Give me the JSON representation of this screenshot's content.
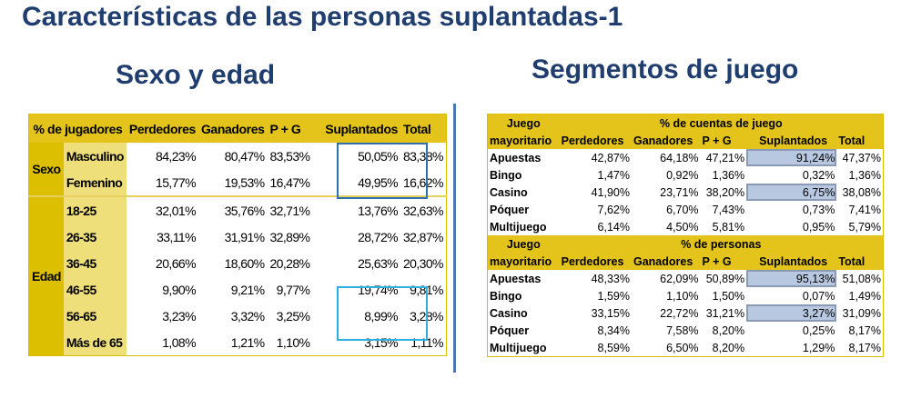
{
  "title": "Características de las personas suplantadas-1",
  "left": {
    "subtitle": "Sexo y edad",
    "corner": "% de jugadores",
    "columns": [
      "Perdedores",
      "Ganadores",
      "P + G",
      "Suplantados",
      "Total"
    ],
    "groups": [
      {
        "label": "Sexo",
        "rows": [
          {
            "label": "Masculino",
            "values": [
              "84,23%",
              "80,47%",
              "83,53%",
              "50,05%",
              "83,38%"
            ]
          },
          {
            "label": "Femenino",
            "values": [
              "15,77%",
              "19,53%",
              "16,47%",
              "49,95%",
              "16,62%"
            ]
          }
        ]
      },
      {
        "label": "Edad",
        "rows": [
          {
            "label": "18-25",
            "values": [
              "32,01%",
              "35,76%",
              "32,71%",
              "13,76%",
              "32,63%"
            ]
          },
          {
            "label": "26-35",
            "values": [
              "33,11%",
              "31,91%",
              "32,89%",
              "28,72%",
              "32,87%"
            ]
          },
          {
            "label": "36-45",
            "values": [
              "20,66%",
              "18,60%",
              "20,28%",
              "25,63%",
              "20,30%"
            ]
          },
          {
            "label": "46-55",
            "values": [
              "9,90%",
              "9,21%",
              "9,77%",
              "19,74%",
              "9,81%"
            ]
          },
          {
            "label": "56-65",
            "values": [
              "3,23%",
              "3,32%",
              "3,25%",
              "8,99%",
              "3,28%"
            ]
          },
          {
            "label": "Más de 65",
            "values": [
              "1,08%",
              "1,21%",
              "1,10%",
              "3,15%",
              "1,11%"
            ]
          }
        ]
      }
    ]
  },
  "right": {
    "subtitle": "Segmentos de juego",
    "sections": [
      {
        "label1": "Juego",
        "label2": "mayoritario",
        "heading": "% de cuentas de juego",
        "columns": [
          "Perdedores",
          "Ganadores",
          "P + G",
          "Suplantados",
          "Total"
        ],
        "rows": [
          {
            "label": "Apuestas",
            "values": [
              "42,87%",
              "64,18%",
              "47,21%",
              "91,24%",
              "47,37%"
            ],
            "highlight": true
          },
          {
            "label": "Bingo",
            "values": [
              "1,47%",
              "0,92%",
              "1,36%",
              "0,32%",
              "1,36%"
            ]
          },
          {
            "label": "Casino",
            "values": [
              "41,90%",
              "23,71%",
              "38,20%",
              "6,75%",
              "38,08%"
            ],
            "highlight": true
          },
          {
            "label": "Póquer",
            "values": [
              "7,62%",
              "6,70%",
              "7,43%",
              "0,73%",
              "7,41%"
            ]
          },
          {
            "label": "Multijuego",
            "values": [
              "6,14%",
              "4,50%",
              "5,81%",
              "0,95%",
              "5,79%"
            ]
          }
        ]
      },
      {
        "label1": "Juego",
        "label2": "mayoritario",
        "heading": "% de personas",
        "columns": [
          "Perdedores",
          "Ganadores",
          "P + G",
          "Suplantados",
          "Total"
        ],
        "rows": [
          {
            "label": "Apuestas",
            "values": [
              "48,33%",
              "62,09%",
              "50,89%",
              "95,13%",
              "51,08%"
            ],
            "highlight": true
          },
          {
            "label": "Bingo",
            "values": [
              "1,59%",
              "1,10%",
              "1,50%",
              "0,07%",
              "1,49%"
            ]
          },
          {
            "label": "Casino",
            "values": [
              "33,15%",
              "22,72%",
              "31,21%",
              "3,27%",
              "31,09%"
            ],
            "highlight": true
          },
          {
            "label": "Póquer",
            "values": [
              "8,34%",
              "7,58%",
              "8,20%",
              "0,25%",
              "8,17%"
            ]
          },
          {
            "label": "Multijuego",
            "values": [
              "8,59%",
              "6,50%",
              "8,20%",
              "1,29%",
              "8,17%"
            ]
          }
        ]
      }
    ]
  },
  "colors": {
    "title": "#1f3d6e",
    "header": "#e4c41a",
    "group": "#dcc000",
    "label": "#efdf7a",
    "highlight": "#b8c8e0",
    "box_sexo": "#2e6fb0",
    "box_edad": "#2bb0e0",
    "divider": "#4a78b5"
  }
}
